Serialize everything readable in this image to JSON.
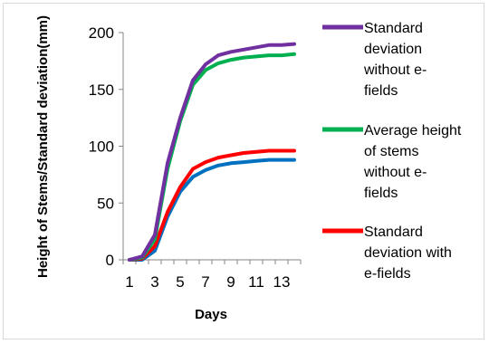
{
  "chart_data": {
    "type": "line",
    "title": "",
    "xlabel": "Days",
    "ylabel": "Height of Stems/Standard deviation(mm)",
    "x": [
      1,
      2,
      3,
      4,
      5,
      6,
      7,
      8,
      9,
      10,
      11,
      12,
      13,
      14
    ],
    "x_tick_labels": [
      "1",
      "3",
      "5",
      "7",
      "9",
      "11",
      "13"
    ],
    "y_ticks": [
      "0",
      "50",
      "100",
      "150",
      "200"
    ],
    "ylim": [
      0,
      200
    ],
    "grid": false,
    "legend_position": "right",
    "series": [
      {
        "name": "Standard deviation without e-fields",
        "legend_lines": [
          "Standard",
          "deviation",
          "without e-",
          "fields"
        ],
        "color": "#7030a0",
        "values": [
          0,
          3,
          22,
          85,
          125,
          158,
          172,
          180,
          183,
          185,
          187,
          189,
          189,
          190
        ]
      },
      {
        "name": "Average height of stems without e-fields",
        "legend_lines": [
          "Average height",
          "of stems",
          "without e-",
          "fields"
        ],
        "color": "#00b050",
        "values": [
          0,
          2,
          18,
          80,
          122,
          154,
          167,
          173,
          176,
          178,
          179,
          180,
          180,
          181
        ]
      },
      {
        "name": "Standard deviation with e-fields",
        "legend_lines": [
          "Standard",
          "deviation with",
          "e-fields"
        ],
        "color": "#ff0000",
        "values": [
          0,
          1,
          12,
          42,
          64,
          80,
          86,
          90,
          92,
          94,
          95,
          96,
          96,
          96
        ]
      },
      {
        "name": "",
        "legend_lines": [],
        "color": "#0070c0",
        "values": [
          0,
          0,
          8,
          38,
          60,
          73,
          79,
          83,
          85,
          86,
          87,
          88,
          88,
          88
        ]
      }
    ]
  }
}
